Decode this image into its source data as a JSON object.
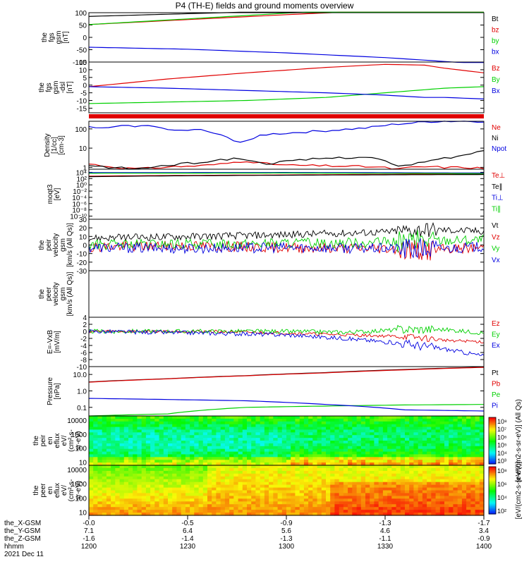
{
  "title": "P4 (TH-E) fields and ground moments overview",
  "colors": {
    "black": "#000000",
    "red": "#e00000",
    "green": "#00d000",
    "blue": "#0000e0"
  },
  "chart_data": [
    {
      "type": "line",
      "name": "fgs_gsm",
      "ylabel": [
        "the",
        "fgs",
        "gsm",
        "[nT]"
      ],
      "ylim": [
        -100,
        100
      ],
      "yscale": "linear",
      "yticks": [
        100,
        50,
        0,
        -50,
        -100
      ],
      "x": [
        0,
        0.25,
        0.5,
        0.75,
        1
      ],
      "series": [
        {
          "name": "Bt",
          "color": "black",
          "values": [
            85,
            96,
            107,
            117,
            126
          ]
        },
        {
          "name": "bz",
          "color": "red",
          "values": [
            52,
            72,
            92,
            110,
            126
          ]
        },
        {
          "name": "by",
          "color": "green",
          "values": [
            52,
            75,
            98,
            118,
            138
          ]
        },
        {
          "name": "bx",
          "color": "blue",
          "values": [
            -40,
            -48,
            -63,
            -82,
            -108
          ]
        }
      ]
    },
    {
      "type": "line",
      "name": "fgs_dsl",
      "ylabel": [
        "the",
        "fgs",
        "gsm",
        "-dsl",
        "[nT]"
      ],
      "ylim": [
        -18,
        15
      ],
      "yscale": "linear",
      "yticks": [
        15,
        10,
        5,
        0,
        -5,
        -10,
        -15
      ],
      "x": [
        0,
        0.2,
        0.4,
        0.6,
        0.75,
        0.85,
        0.9,
        1
      ],
      "series": [
        {
          "name": "Bz",
          "color": "red",
          "values": [
            -1,
            4,
            8,
            11.5,
            13.5,
            13,
            11,
            8
          ]
        },
        {
          "name": "By",
          "color": "green",
          "values": [
            -12,
            -11,
            -10,
            -8,
            -5,
            -3,
            -2,
            -1
          ]
        },
        {
          "name": "Bx",
          "color": "blue",
          "values": [
            -1,
            -2,
            -3.5,
            -5,
            -6.5,
            -8,
            -8,
            -9
          ]
        }
      ]
    },
    {
      "type": "line",
      "name": "density",
      "ylabel": [
        "Density",
        "[1/cc]",
        "[cm-3]"
      ],
      "ylim": [
        0.8,
        250
      ],
      "yscale": "log",
      "yticks": [
        100,
        10,
        1
      ],
      "x": [
        0,
        0.05,
        0.1,
        0.14,
        0.18,
        0.22,
        0.28,
        0.34,
        0.38,
        0.4,
        0.44,
        0.5,
        0.6,
        0.7,
        0.74,
        0.78,
        0.82,
        0.86,
        0.9,
        0.95,
        1
      ],
      "series": [
        {
          "name": "Ne",
          "color": "red",
          "values": [
            1.5,
            1.1,
            0.9,
            0.85,
            1,
            1.1,
            1.2,
            1.5,
            2,
            2.2,
            1.6,
            1.3,
            1.2,
            1.1,
            1.0,
            0.8,
            1.0,
            1.1,
            1.0,
            1.0,
            0.9
          ]
        },
        {
          "name": "Ni",
          "color": "black",
          "values": [
            1.2,
            1.0,
            0.9,
            0.85,
            1.2,
            1.4,
            1.8,
            2.5,
            3,
            2.5,
            1.5,
            2,
            3,
            3.5,
            2.5,
            1,
            1.5,
            2,
            3,
            4,
            8
          ]
        },
        {
          "name": "Npot",
          "color": "blue",
          "values": [
            120,
            110,
            150,
            140,
            130,
            80,
            90,
            40,
            20,
            25,
            50,
            60,
            80,
            110,
            140,
            180,
            200,
            240,
            250,
            250,
            250
          ]
        }
      ]
    },
    {
      "type": "line",
      "name": "moqt3",
      "ylabel": [
        "moqt3",
        "[eV]"
      ],
      "ylim": [
        1e-11,
        100000
      ],
      "yscale": "log",
      "yticks": [
        10000,
        100,
        1,
        0.01,
        0.0001,
        1e-06,
        1e-08,
        1e-10
      ],
      "ytick_labels": [
        "10⁴",
        "10²",
        "10⁰",
        "10⁻²",
        "10⁻⁴",
        "10⁻⁶",
        "10⁻⁸",
        "10⁻¹⁰"
      ],
      "x": [
        0,
        0.5,
        1
      ],
      "series": [
        {
          "name": "Te⊥",
          "color": "red",
          "values": [
            600,
            1500,
            3000
          ]
        },
        {
          "name": "Te∥",
          "color": "black",
          "values": [
            400,
            1200,
            2000
          ]
        },
        {
          "name": "Ti⊥",
          "color": "blue",
          "values": [
            8000,
            9000,
            6000
          ]
        },
        {
          "name": "Ti∥",
          "color": "green",
          "values": [
            5000,
            6000,
            4000
          ]
        }
      ]
    },
    {
      "type": "line",
      "name": "peir_velocity",
      "ylabel": [
        "the",
        "peir",
        "velocity",
        "gsm",
        "[km/s (All Qs)]"
      ],
      "ylim": [
        -30,
        30
      ],
      "yscale": "linear",
      "yticks": [
        30,
        20,
        10,
        0,
        -10,
        -20,
        -30
      ],
      "x": [
        0,
        0.25,
        0.5,
        0.75,
        0.85,
        1
      ],
      "series": [
        {
          "name": "Vt",
          "color": "black",
          "values": [
            8,
            10,
            12,
            15,
            18,
            16
          ]
        },
        {
          "name": "Vz",
          "color": "red",
          "values": [
            -2,
            -1,
            -3,
            -4,
            -6,
            -3
          ]
        },
        {
          "name": "Vy",
          "color": "green",
          "values": [
            0,
            1,
            2,
            3,
            5,
            6
          ]
        },
        {
          "name": "Vx",
          "color": "blue",
          "values": [
            -3,
            -4,
            -3,
            -4,
            -5,
            -2
          ]
        }
      ]
    },
    {
      "type": "line",
      "name": "peer_velocity",
      "ylabel": [
        "the",
        "peer",
        "velocity",
        "gsm",
        "[km/s (All Qs)]"
      ],
      "ylim": [
        -30,
        30
      ],
      "yscale": "linear",
      "yticks": [],
      "x": [],
      "series": [
        {
          "name": "Vt",
          "color": "black",
          "values": []
        },
        {
          "name": "Vz",
          "color": "red",
          "values": []
        },
        {
          "name": "Vy",
          "color": "green",
          "values": []
        },
        {
          "name": "Vx",
          "color": "blue",
          "values": []
        }
      ]
    },
    {
      "type": "line",
      "name": "efield",
      "ylabel": [
        "E=-VxB",
        "[mV/m]"
      ],
      "ylim": [
        -10,
        4
      ],
      "yscale": "linear",
      "yticks": [
        4,
        2,
        0,
        -2,
        -4,
        -6,
        -8,
        -10
      ],
      "x": [
        0,
        0.3,
        0.5,
        0.65,
        0.8,
        0.9,
        1
      ],
      "series": [
        {
          "name": "Ez",
          "color": "red",
          "values": [
            0,
            0,
            -0.5,
            -1,
            -1.5,
            -2.5,
            -3
          ]
        },
        {
          "name": "Ey",
          "color": "green",
          "values": [
            0,
            0,
            0,
            -0.3,
            0.5,
            0.5,
            -0.5
          ]
        },
        {
          "name": "Ex",
          "color": "blue",
          "values": [
            0,
            -0.5,
            -1,
            -2,
            -3.5,
            -5,
            -7
          ]
        }
      ]
    },
    {
      "type": "line",
      "name": "pressure",
      "ylabel": [
        "Pressure",
        "[nPa]"
      ],
      "ylim": [
        0.03,
        30
      ],
      "yscale": "log",
      "yticks": [
        10,
        1,
        0.1
      ],
      "ytick_labels": [
        "10.0",
        "1.0",
        "0.1"
      ],
      "x": [
        0,
        0.2,
        0.4,
        0.6,
        0.8,
        1
      ],
      "series": [
        {
          "name": "Pt",
          "color": "black",
          "values": [
            3.5,
            5.5,
            8.5,
            13,
            20,
            28
          ]
        },
        {
          "name": "Pb",
          "color": "red",
          "values": [
            3.4,
            5.4,
            8.3,
            12.5,
            19,
            27
          ]
        },
        {
          "name": "Pe",
          "color": "green",
          "values": [
            0.03,
            0.04,
            0.1,
            0.12,
            0.14,
            0.15
          ]
        },
        {
          "name": "Pi",
          "color": "blue",
          "values": [
            0.35,
            0.3,
            0.25,
            0.15,
            0.07,
            0.06
          ]
        }
      ]
    },
    {
      "type": "heatmap",
      "name": "peir_en_eflux",
      "ylabel": [
        "the",
        "peir",
        "en",
        "eflux",
        "eV/",
        "(cm²-s-",
        "sr-eV)"
      ],
      "ylim": [
        6,
        20000
      ],
      "yscale": "log",
      "yticks": [
        10000,
        1000,
        100,
        10
      ],
      "ytick_labels": [
        "10000",
        "1000",
        "100",
        "10"
      ],
      "colorbar": {
        "label": "[eV/(cm2-s-sr-eV)] (All Qs)",
        "ticks": [
          "10⁸",
          "10⁷",
          "10⁶",
          "10⁵",
          "10⁴",
          "10³"
        ],
        "range_log": [
          3,
          8
        ]
      }
    },
    {
      "type": "heatmap",
      "name": "peer_en_eflux",
      "ylabel": [
        "the",
        "peer",
        "en",
        "eflux",
        "eV/",
        "(cm²-s-",
        "sr-eV)"
      ],
      "ylim": [
        6,
        20000
      ],
      "yscale": "log",
      "yticks": [
        10000,
        1000,
        100,
        10
      ],
      "ytick_labels": [
        "10000",
        "1000",
        "100",
        "10"
      ],
      "colorbar": {
        "label": "[eV/(cm2-s-sr-eV)]",
        "ticks": [
          "10⁸",
          "10⁶",
          "10⁴",
          "10²"
        ],
        "range_log": [
          1,
          8
        ]
      }
    }
  ],
  "x_axis": {
    "rows": [
      {
        "label": "the_X-GSM",
        "values": [
          "-0.0",
          "-0.5",
          "-0.9",
          "-1.3",
          "-1.7"
        ]
      },
      {
        "label": "the_Y-GSM",
        "values": [
          "7.1",
          "6.4",
          "5.6",
          "4.6",
          "3.4"
        ]
      },
      {
        "label": "the_Z-GSM",
        "values": [
          "-1.6",
          "-1.4",
          "-1.3",
          "-1.1",
          "-0.9"
        ]
      },
      {
        "label": "hhmm",
        "values": [
          "1200",
          "1230",
          "1300",
          "1330",
          "1400"
        ]
      }
    ],
    "date": "2021 Dec 11"
  }
}
